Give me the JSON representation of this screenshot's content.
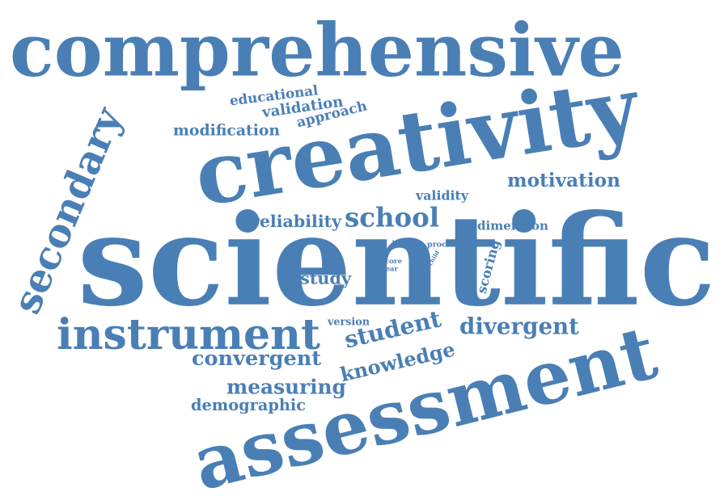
{
  "cloud": {
    "color": "#4a7fb5",
    "words": [
      "comprehensive",
      "creativity",
      "scientific",
      "assessment",
      "secondary",
      "instrument",
      "student",
      "knowledge",
      "divergent",
      "convergent",
      "measuring",
      "demographic",
      "school",
      "reliability",
      "motivation",
      "educational",
      "validation",
      "approach",
      "modification",
      "validity",
      "dimension",
      "study",
      "scoring",
      "version",
      "proc",
      "test",
      "score",
      "clear",
      "child"
    ]
  }
}
